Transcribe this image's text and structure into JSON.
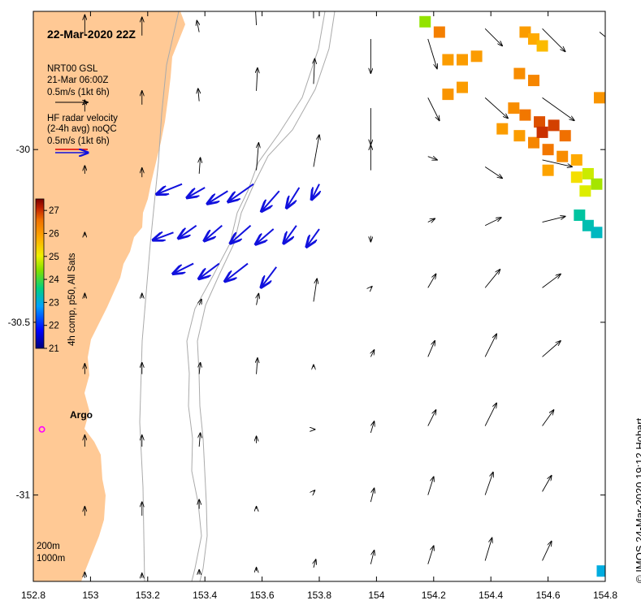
{
  "title": "22-Mar-2020 22Z",
  "model_legend": {
    "lines": [
      "NRT00 GSL",
      "21-Mar 06:00Z",
      "0.5m/s (1kt 6h)"
    ]
  },
  "radar_legend": {
    "lines": [
      "HF radar velocity",
      "(2-4h avg) noQC",
      "0.5m/s (1kt 6h)"
    ]
  },
  "colorbar": {
    "label": "4h comp, p50, All Sats",
    "min": 21,
    "max": 27.5,
    "ticks": [
      "21",
      "22",
      "23",
      "24",
      "25",
      "26",
      "27"
    ]
  },
  "x_axis": {
    "ticks": [
      "152.8",
      "153",
      "153.2",
      "153.4",
      "153.6",
      "153.8",
      "154",
      "154.2",
      "154.4",
      "154.6",
      "154.8"
    ]
  },
  "y_axis": {
    "ticks": [
      "-30",
      "-30.5",
      "-31"
    ]
  },
  "extent": {
    "lon": [
      152.8,
      154.8
    ],
    "lat": [
      -31.25,
      -29.6
    ]
  },
  "argo": {
    "label": "Argo",
    "lon": 152.83,
    "lat": -30.81,
    "color": "#ff00ff"
  },
  "isobath_labels": [
    "200m",
    "1000m"
  ],
  "credit": "© IMOS 24-Mar-2020 19:12 Hobart",
  "colors": {
    "land": "#ffc995",
    "model_arrow": "#000000",
    "radar_arrow": "#1111dd",
    "isobath": "#aaaaaa"
  },
  "model_arrows": [
    [
      152.98,
      -29.67,
      0.0,
      0.18
    ],
    [
      153.18,
      -29.67,
      0.0,
      0.16
    ],
    [
      153.38,
      -29.66,
      -0.02,
      0.1
    ],
    [
      153.58,
      -29.64,
      -0.01,
      0.18
    ],
    [
      153.78,
      -29.62,
      0.0,
      0.16
    ],
    [
      153.98,
      -29.68,
      0.0,
      -0.3
    ],
    [
      154.18,
      -29.68,
      0.08,
      -0.26
    ],
    [
      154.38,
      -29.65,
      0.15,
      -0.15
    ],
    [
      154.58,
      -29.65,
      0.2,
      -0.2
    ],
    [
      154.78,
      -29.66,
      0.1,
      -0.08
    ],
    [
      152.98,
      -29.89,
      0.0,
      0.1
    ],
    [
      153.18,
      -29.87,
      0.0,
      0.12
    ],
    [
      153.38,
      -29.86,
      -0.01,
      0.11
    ],
    [
      153.58,
      -29.83,
      0.01,
      0.2
    ],
    [
      153.78,
      -29.81,
      0.01,
      0.22
    ],
    [
      153.98,
      -29.88,
      0.0,
      -0.32
    ],
    [
      154.18,
      -29.85,
      0.1,
      -0.2
    ],
    [
      154.38,
      -29.85,
      0.2,
      -0.18
    ],
    [
      154.58,
      -29.85,
      0.28,
      -0.2
    ],
    [
      152.98,
      -30.07,
      0.0,
      0.07
    ],
    [
      153.18,
      -30.08,
      0.0,
      0.08
    ],
    [
      153.38,
      -30.07,
      0.01,
      0.14
    ],
    [
      153.58,
      -30.06,
      0.02,
      0.24
    ],
    [
      153.78,
      -30.05,
      0.05,
      0.28
    ],
    [
      153.98,
      -30.06,
      0.0,
      0.22
    ],
    [
      154.18,
      -30.02,
      0.08,
      -0.03
    ],
    [
      154.38,
      -30.05,
      0.15,
      -0.1
    ],
    [
      154.58,
      -30.03,
      0.26,
      -0.06
    ],
    [
      152.98,
      -30.25,
      0.0,
      0.03
    ],
    [
      153.98,
      -30.25,
      0.0,
      -0.05
    ],
    [
      154.18,
      -30.21,
      0.06,
      0.03
    ],
    [
      154.38,
      -30.22,
      0.14,
      0.07
    ],
    [
      154.58,
      -30.21,
      0.2,
      0.05
    ],
    [
      152.98,
      -30.43,
      0.0,
      0.04
    ],
    [
      153.18,
      -30.43,
      0.0,
      0.04
    ],
    [
      153.38,
      -30.45,
      0.02,
      0.05
    ],
    [
      153.58,
      -30.45,
      0.02,
      0.1
    ],
    [
      153.78,
      -30.44,
      0.03,
      0.2
    ],
    [
      153.98,
      -30.4,
      0.01,
      0.01
    ],
    [
      154.18,
      -30.4,
      0.07,
      0.12
    ],
    [
      154.38,
      -30.4,
      0.13,
      0.16
    ],
    [
      154.58,
      -30.4,
      0.16,
      0.12
    ],
    [
      152.98,
      -30.65,
      0.0,
      0.09
    ],
    [
      153.18,
      -30.65,
      0.0,
      0.1
    ],
    [
      153.38,
      -30.65,
      0.01,
      0.1
    ],
    [
      153.58,
      -30.65,
      0.01,
      0.14
    ],
    [
      153.78,
      -30.63,
      0.0,
      0.02
    ],
    [
      153.98,
      -30.6,
      0.03,
      0.06
    ],
    [
      154.18,
      -30.6,
      0.06,
      0.14
    ],
    [
      154.38,
      -30.6,
      0.1,
      0.2
    ],
    [
      154.58,
      -30.6,
      0.16,
      0.14
    ],
    [
      152.98,
      -30.86,
      0.0,
      0.1
    ],
    [
      153.18,
      -30.86,
      0.0,
      0.1
    ],
    [
      153.38,
      -30.86,
      0.01,
      0.12
    ],
    [
      153.58,
      -30.85,
      0.0,
      0.06
    ],
    [
      153.78,
      -30.81,
      0.01,
      0.0
    ],
    [
      153.98,
      -30.82,
      0.03,
      0.1
    ],
    [
      154.18,
      -30.8,
      0.07,
      0.14
    ],
    [
      154.38,
      -30.8,
      0.1,
      0.2
    ],
    [
      154.58,
      -30.8,
      0.1,
      0.14
    ],
    [
      152.98,
      -31.06,
      0.0,
      0.08
    ],
    [
      153.18,
      -31.06,
      0.0,
      0.12
    ],
    [
      153.38,
      -31.04,
      0.0,
      0.08
    ],
    [
      153.58,
      -31.04,
      0.0,
      0.02
    ],
    [
      153.78,
      -30.99,
      0.01,
      0.01
    ],
    [
      153.98,
      -31.02,
      0.03,
      0.12
    ],
    [
      154.18,
      -31.0,
      0.05,
      0.16
    ],
    [
      154.38,
      -31.0,
      0.07,
      0.2
    ],
    [
      154.58,
      -30.99,
      0.08,
      0.14
    ],
    [
      152.98,
      -31.24,
      0.0,
      0.05
    ],
    [
      153.18,
      -31.24,
      0.0,
      0.04
    ],
    [
      153.38,
      -31.23,
      0.0,
      0.04
    ],
    [
      153.58,
      -31.22,
      0.0,
      0.03
    ],
    [
      153.78,
      -31.21,
      0.02,
      0.07
    ],
    [
      153.98,
      -31.2,
      0.03,
      0.12
    ],
    [
      154.18,
      -31.2,
      0.05,
      0.16
    ],
    [
      154.38,
      -31.19,
      0.06,
      0.2
    ],
    [
      154.58,
      -31.19,
      0.08,
      0.17
    ]
  ],
  "radar_arrows": [
    [
      153.32,
      -30.1,
      -0.1,
      -0.04
    ],
    [
      153.4,
      -30.11,
      -0.07,
      -0.04
    ],
    [
      153.48,
      -30.12,
      -0.08,
      -0.05
    ],
    [
      153.57,
      -30.1,
      -0.1,
      -0.07
    ],
    [
      153.66,
      -30.12,
      -0.07,
      -0.08
    ],
    [
      153.73,
      -30.11,
      -0.05,
      -0.08
    ],
    [
      153.8,
      -30.1,
      -0.03,
      -0.06
    ],
    [
      153.29,
      -30.24,
      -0.08,
      -0.03
    ],
    [
      153.37,
      -30.22,
      -0.07,
      -0.05
    ],
    [
      153.46,
      -30.22,
      -0.07,
      -0.06
    ],
    [
      153.56,
      -30.22,
      -0.08,
      -0.07
    ],
    [
      153.64,
      -30.23,
      -0.07,
      -0.06
    ],
    [
      153.72,
      -30.22,
      -0.05,
      -0.07
    ],
    [
      153.8,
      -30.23,
      -0.05,
      -0.07
    ],
    [
      153.36,
      -30.33,
      -0.08,
      -0.04
    ],
    [
      153.45,
      -30.33,
      -0.08,
      -0.06
    ],
    [
      153.55,
      -30.33,
      -0.09,
      -0.07
    ],
    [
      153.65,
      -30.34,
      -0.06,
      -0.08
    ]
  ],
  "sst_cells": [
    [
      154.17,
      -29.63,
      24.5
    ],
    [
      154.22,
      -29.66,
      26.4
    ],
    [
      154.25,
      -29.74,
      26.0
    ],
    [
      154.3,
      -29.74,
      26.0
    ],
    [
      154.35,
      -29.73,
      26.0
    ],
    [
      154.25,
      -29.84,
      26.1
    ],
    [
      154.3,
      -29.82,
      26.0
    ],
    [
      154.52,
      -29.66,
      26.0
    ],
    [
      154.55,
      -29.68,
      25.8
    ],
    [
      154.58,
      -29.7,
      25.6
    ],
    [
      154.5,
      -29.78,
      26.2
    ],
    [
      154.55,
      -29.8,
      26.3
    ],
    [
      154.48,
      -29.88,
      26.2
    ],
    [
      154.52,
      -29.9,
      26.5
    ],
    [
      154.57,
      -29.92,
      26.8
    ],
    [
      154.62,
      -29.93,
      26.9
    ],
    [
      154.66,
      -29.96,
      26.6
    ],
    [
      154.44,
      -29.94,
      26.0
    ],
    [
      154.5,
      -29.96,
      26.0
    ],
    [
      154.55,
      -29.98,
      26.3
    ],
    [
      154.6,
      -30.0,
      26.5
    ],
    [
      154.65,
      -30.02,
      26.2
    ],
    [
      154.7,
      -30.03,
      25.8
    ],
    [
      154.58,
      -29.95,
      27.0
    ],
    [
      154.7,
      -30.08,
      25.2
    ],
    [
      154.74,
      -30.07,
      24.8
    ],
    [
      154.77,
      -30.1,
      24.6
    ],
    [
      154.73,
      -30.12,
      24.9
    ],
    [
      154.6,
      -30.06,
      25.9
    ],
    [
      154.78,
      -29.85,
      26.1
    ],
    [
      154.71,
      -30.19,
      23.4
    ],
    [
      154.74,
      -30.22,
      23.3
    ],
    [
      154.77,
      -30.24,
      23.2
    ],
    [
      154.79,
      -31.22,
      23.0
    ]
  ]
}
